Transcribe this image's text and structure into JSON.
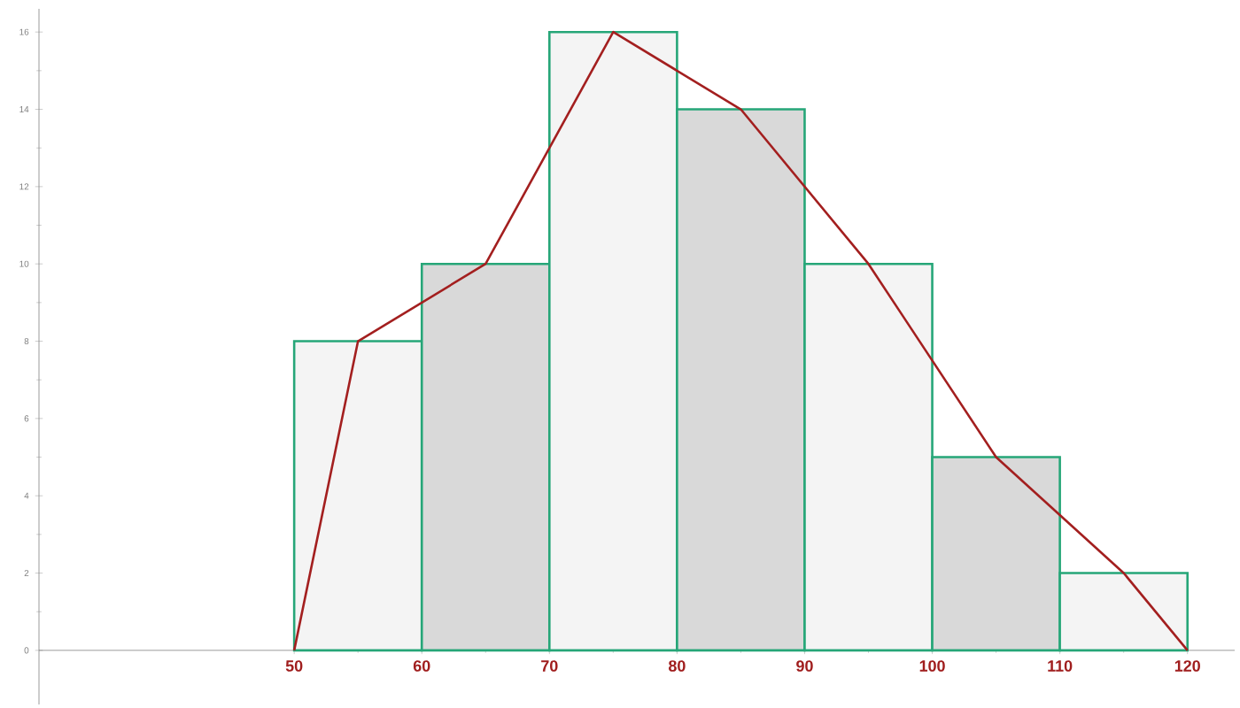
{
  "chart_data": {
    "type": "histogram",
    "bins": [
      50,
      60,
      70,
      80,
      90,
      100,
      110,
      120
    ],
    "values": [
      8,
      10,
      16,
      14,
      10,
      5,
      2
    ],
    "colors": [
      "#f4f4f4",
      "#d9d9d9",
      "#f4f4f4",
      "#d9d9d9",
      "#f4f4f4",
      "#d9d9d9",
      "#f4f4f4"
    ],
    "series": [
      {
        "type": "line",
        "x": [
          50,
          55,
          65,
          75,
          85,
          95,
          105,
          115,
          120
        ],
        "values": [
          0,
          8,
          10,
          16,
          14,
          10,
          5,
          2,
          0
        ],
        "color": "#a31f1f"
      }
    ],
    "xlim": [
      30,
      123.7
    ],
    "ylim": [
      -1.4,
      16.6
    ],
    "xticks": [
      50,
      60,
      70,
      80,
      90,
      100,
      110,
      120
    ],
    "yticks": [
      0,
      2,
      4,
      6,
      8,
      10,
      12,
      14,
      16
    ]
  }
}
